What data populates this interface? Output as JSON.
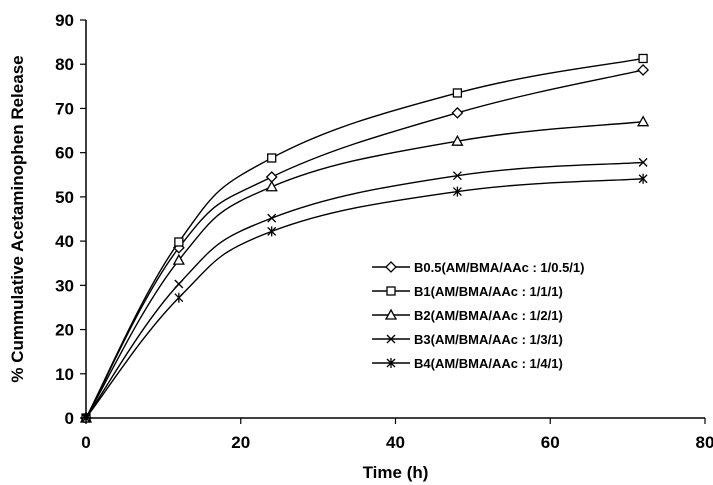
{
  "chart_data": {
    "type": "line",
    "title": "",
    "xlabel": "Time (h)",
    "ylabel": "% Cummulative Acetaminophen Release",
    "xlim": [
      0,
      80
    ],
    "ylim": [
      0,
      90
    ],
    "xticks": [
      0,
      20,
      40,
      60,
      80
    ],
    "yticks": [
      0,
      10,
      20,
      30,
      40,
      50,
      60,
      70,
      80,
      90
    ],
    "grid": false,
    "legend_position": "center-right",
    "line_color": "#000000",
    "x": [
      0,
      12,
      24,
      48,
      72
    ],
    "series": [
      {
        "name": "B0.5(AM/BMA/AAc : 1/0.5/1)",
        "marker": "diamond",
        "values": [
          0,
          38.5,
          54.5,
          69,
          78.7
        ]
      },
      {
        "name": "B1(AM/BMA/AAc : 1/1/1)",
        "marker": "square",
        "values": [
          0,
          39.8,
          58.8,
          73.5,
          81.3
        ]
      },
      {
        "name": "B2(AM/BMA/AAc : 1/2/1)",
        "marker": "triangle",
        "values": [
          0,
          35.7,
          52.3,
          62.6,
          67
        ]
      },
      {
        "name": "B3(AM/BMA/AAc : 1/3/1)",
        "marker": "x",
        "values": [
          0,
          30.3,
          45.2,
          54.8,
          57.8
        ]
      },
      {
        "name": "B4(AM/BMA/AAc : 1/4/1)",
        "marker": "asterisk",
        "values": [
          0,
          27.2,
          42.2,
          51.2,
          54.1
        ]
      }
    ]
  }
}
